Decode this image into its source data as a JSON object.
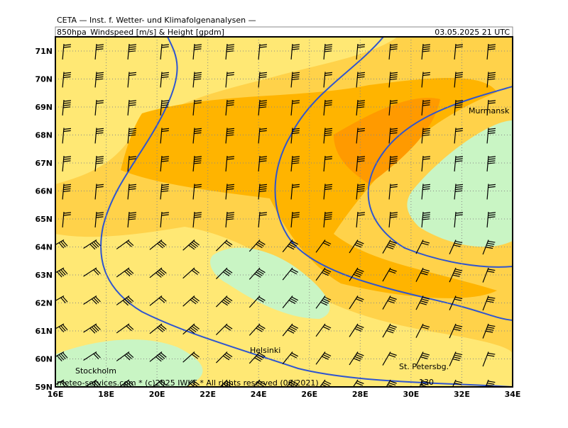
{
  "header": {
    "line1": "CETA — Inst. f. Wetter- und Klimafolgenanalysen —",
    "product": "850hpa_Windspeed [m/s] & Height [gpdm]",
    "valid": "03.05.2025 21 UTC"
  },
  "axes": {
    "lat_labels": [
      "71N",
      "70N",
      "69N",
      "68N",
      "67N",
      "66N",
      "65N",
      "64N",
      "63N",
      "62N",
      "61N",
      "60N",
      "59N"
    ],
    "lon_labels": [
      "16E",
      "18E",
      "20E",
      "22E",
      "24E",
      "26E",
      "28E",
      "30E",
      "32E",
      "34E"
    ]
  },
  "places": [
    "Murmansk",
    "Helsinki",
    "Stockholm",
    "St. Petersbg."
  ],
  "contour_label": "130",
  "footer": "meteo-services.com * (c)2025 IWKF * All rights reserved (06/2021)"
}
